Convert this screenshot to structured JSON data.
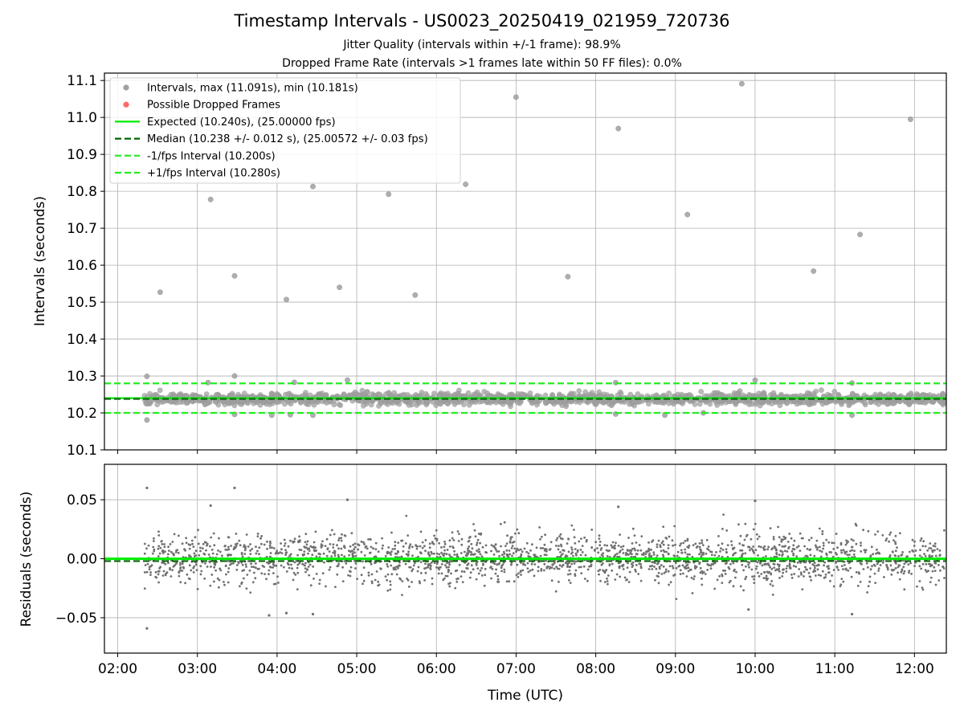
{
  "header": {
    "title": "Timestamp Intervals - US0023_20250419_021959_720736",
    "subtitle1": "Jitter Quality (intervals within +/-1 frame): 98.9%",
    "subtitle2": "Dropped Frame Rate (intervals >1 frames late within 50 FF files): 0.0%"
  },
  "chart_data": [
    {
      "type": "scatter",
      "panel": "intervals",
      "xlabel": "",
      "ylabel": "Intervals (seconds)",
      "xlim": [
        "01:50",
        "12:24"
      ],
      "ylim": [
        10.1,
        11.12
      ],
      "y_ticks": [
        10.1,
        10.2,
        10.3,
        10.4,
        10.5,
        10.6,
        10.7,
        10.8,
        10.9,
        11.0,
        11.1
      ],
      "y_tick_labels": [
        "10.1",
        "10.2",
        "10.3",
        "10.4",
        "10.5",
        "10.6",
        "10.7",
        "10.8",
        "10.9",
        "11.0",
        "11.1"
      ],
      "grid": true,
      "legend_position": "top-left",
      "legend": [
        {
          "label": "Intervals, max (11.091s), min (10.181s)",
          "kind": "marker",
          "color": "#a0a0a0"
        },
        {
          "label": "Possible Dropped Frames",
          "kind": "marker",
          "color": "#ff6b6b"
        },
        {
          "label": "Expected (10.240s), (25.00000 fps)",
          "kind": "line",
          "color": "#00ee00",
          "dash": "solid"
        },
        {
          "label": "Median (10.238 +/- 0.012 s), (25.00572 +/- 0.03 fps)",
          "kind": "line",
          "color": "#006400",
          "dash": "dashed"
        },
        {
          "label": "-1/fps Interval (10.200s)",
          "kind": "line",
          "color": "#22ee22",
          "dash": "dashed"
        },
        {
          "label": "+1/fps Interval (10.280s)",
          "kind": "line",
          "color": "#22ee22",
          "dash": "dashed"
        }
      ],
      "reference_lines": [
        {
          "name": "expected",
          "y": 10.24,
          "color": "#00ee00",
          "dash": "solid"
        },
        {
          "name": "median",
          "y": 10.238,
          "color": "#006400",
          "dash": "dashed"
        },
        {
          "name": "minus_one_fps",
          "y": 10.2,
          "color": "#22ee22",
          "dash": "dashed"
        },
        {
          "name": "plus_one_fps",
          "y": 10.28,
          "color": "#22ee22",
          "dash": "dashed"
        }
      ],
      "dense_band": {
        "x_start": "02:20",
        "x_end": "12:24",
        "center": 10.238,
        "spread": 0.012,
        "approx_count": 3600,
        "note": "continuous dense band of interval points"
      },
      "series": [
        {
          "name": "Intervals, max (11.091s), min (10.181s)",
          "color": "#a0a0a0",
          "points": [
            {
              "x": "02:22",
              "y": 10.181
            },
            {
              "x": "02:22",
              "y": 10.299
            },
            {
              "x": "02:32",
              "y": 10.527
            },
            {
              "x": "03:10",
              "y": 10.778
            },
            {
              "x": "03:28",
              "y": 10.571
            },
            {
              "x": "03:28",
              "y": 10.3
            },
            {
              "x": "04:07",
              "y": 10.507
            },
            {
              "x": "04:27",
              "y": 10.813
            },
            {
              "x": "04:47",
              "y": 10.54
            },
            {
              "x": "05:24",
              "y": 10.792
            },
            {
              "x": "05:44",
              "y": 10.519
            },
            {
              "x": "06:22",
              "y": 10.819
            },
            {
              "x": "07:00",
              "y": 11.055
            },
            {
              "x": "07:39",
              "y": 10.569
            },
            {
              "x": "08:17",
              "y": 10.97
            },
            {
              "x": "09:09",
              "y": 10.737
            },
            {
              "x": "09:50",
              "y": 11.091
            },
            {
              "x": "10:44",
              "y": 10.584
            },
            {
              "x": "11:19",
              "y": 10.683
            },
            {
              "x": "11:57",
              "y": 10.995
            },
            {
              "x": "03:08",
              "y": 10.282
            },
            {
              "x": "04:13",
              "y": 10.283
            },
            {
              "x": "04:53",
              "y": 10.289
            },
            {
              "x": "08:15",
              "y": 10.282
            },
            {
              "x": "10:00",
              "y": 10.289
            },
            {
              "x": "11:13",
              "y": 10.281
            },
            {
              "x": "03:28",
              "y": 10.196
            },
            {
              "x": "03:56",
              "y": 10.194
            },
            {
              "x": "04:10",
              "y": 10.195
            },
            {
              "x": "04:27",
              "y": 10.194
            },
            {
              "x": "08:15",
              "y": 10.197
            },
            {
              "x": "08:52",
              "y": 10.194
            },
            {
              "x": "09:21",
              "y": 10.2
            },
            {
              "x": "11:13",
              "y": 10.194
            }
          ]
        },
        {
          "name": "Possible Dropped Frames",
          "color": "#ff6b6b",
          "points": []
        }
      ]
    },
    {
      "type": "scatter",
      "panel": "residuals",
      "xlabel": "Time (UTC)",
      "ylabel": "Residuals (seconds)",
      "xlim": [
        "01:50",
        "12:24"
      ],
      "ylim": [
        -0.08,
        0.08
      ],
      "x_ticks": [
        "02:00",
        "03:00",
        "04:00",
        "05:00",
        "06:00",
        "07:00",
        "08:00",
        "09:00",
        "10:00",
        "11:00",
        "12:00"
      ],
      "y_ticks": [
        -0.05,
        0.0,
        0.05
      ],
      "y_tick_labels": [
        "−0.05",
        "0.00",
        "0.05"
      ],
      "grid": true,
      "reference_lines": [
        {
          "name": "zero",
          "y": 0.0,
          "color": "#00ee00",
          "dash": "solid"
        },
        {
          "name": "median_offset",
          "y": -0.002,
          "color": "#006400",
          "dash": "dashed"
        }
      ],
      "dense_band": {
        "x_start": "02:20",
        "x_end": "12:24",
        "center": 0.0,
        "spread": 0.015,
        "approx_count": 3600
      },
      "series": [
        {
          "name": "Residuals",
          "color": "#707070",
          "points": [
            {
              "x": "02:22",
              "y": 0.06
            },
            {
              "x": "02:22",
              "y": -0.059
            },
            {
              "x": "03:28",
              "y": 0.06
            },
            {
              "x": "03:10",
              "y": 0.045
            },
            {
              "x": "04:53",
              "y": 0.05
            },
            {
              "x": "10:00",
              "y": 0.049
            },
            {
              "x": "08:17",
              "y": 0.044
            },
            {
              "x": "09:55",
              "y": -0.043
            },
            {
              "x": "11:13",
              "y": -0.047
            },
            {
              "x": "03:54",
              "y": -0.048
            },
            {
              "x": "04:27",
              "y": -0.047
            },
            {
              "x": "04:07",
              "y": -0.046
            }
          ]
        }
      ]
    }
  ]
}
